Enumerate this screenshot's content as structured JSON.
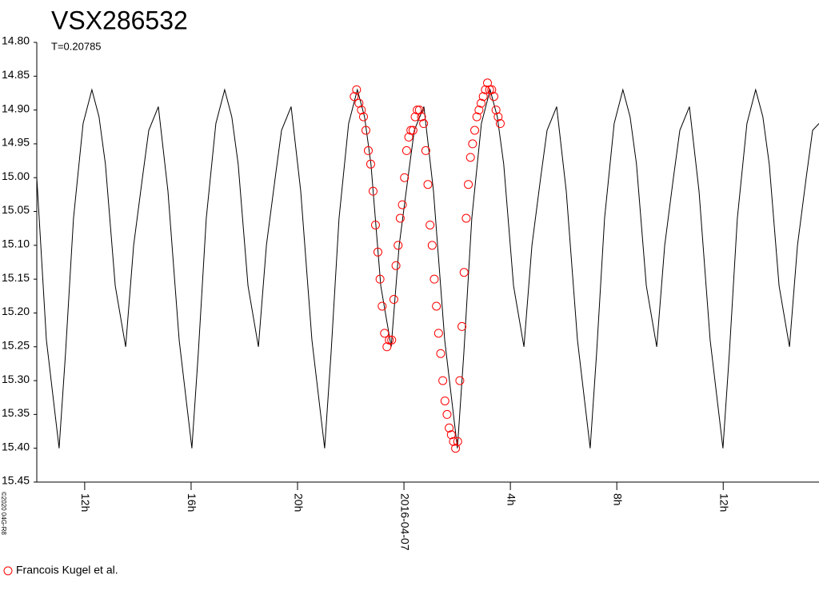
{
  "chart_data": {
    "type": "line",
    "title": "VSX286532",
    "subtitle": "T=0.20785",
    "credit": "©2020 04G-R8",
    "ylim": [
      14.8,
      15.45
    ],
    "y_inverted": true,
    "yticks": [
      {
        "value": 14.8,
        "label": "14.80"
      },
      14.85,
      {
        "value": 14.9,
        "label": "14.90"
      },
      14.95,
      {
        "value": 15.0,
        "label": "15.00"
      },
      15.05,
      {
        "value": 15.1,
        "label": "15.10"
      },
      15.15,
      {
        "value": 15.2,
        "label": "15.20"
      },
      15.25,
      {
        "value": 15.3,
        "label": "15.30"
      },
      15.35,
      {
        "value": 15.4,
        "label": "15.40"
      },
      {
        "value": 15.45,
        "label": "15.45"
      }
    ],
    "xlim": [
      10.2,
      39.6
    ],
    "xticks": [
      {
        "value": 12,
        "label": "12h"
      },
      {
        "value": 16,
        "label": "16h"
      },
      {
        "value": 20,
        "label": "20h"
      },
      {
        "value": 24,
        "label": "2016-04-07"
      },
      {
        "value": 28,
        "label": "4h"
      },
      {
        "value": 32,
        "label": "8h"
      },
      {
        "value": 36,
        "label": "12h"
      }
    ],
    "legend": "bottom-left",
    "series": [
      {
        "type": "line",
        "color": "#000000",
        "x": [
          10.2,
          10.56,
          11.04,
          11.28,
          11.58,
          11.94,
          12.27,
          12.54,
          12.78,
          13.15,
          13.54,
          13.84,
          14.17,
          14.41,
          14.77,
          15.13,
          15.55,
          16.03,
          16.27,
          16.57,
          16.93,
          17.26,
          17.53,
          17.77,
          18.14,
          18.53,
          18.83,
          19.16,
          19.4,
          19.76,
          20.12,
          20.54,
          21.02,
          21.26,
          21.56,
          21.92,
          22.25,
          22.52,
          22.76,
          23.13,
          23.52,
          23.82,
          24.15,
          24.39,
          24.75,
          25.11,
          25.53,
          26.01,
          26.25,
          26.55,
          26.91,
          27.24,
          27.51,
          27.75,
          28.12,
          28.51,
          28.81,
          29.14,
          29.38,
          29.74,
          30.1,
          30.52,
          31.0,
          31.24,
          31.54,
          31.9,
          32.23,
          32.5,
          32.74,
          33.11,
          33.5,
          33.8,
          34.13,
          34.37,
          34.73,
          35.09,
          35.51,
          35.99,
          36.23,
          36.53,
          36.89,
          37.22,
          37.49,
          37.73,
          38.1,
          38.49,
          38.79,
          39.12,
          39.36,
          39.6
        ],
        "values": [
          15.0,
          15.24,
          15.4,
          15.26,
          15.06,
          14.92,
          14.87,
          14.91,
          14.98,
          15.16,
          15.25,
          15.1,
          15.0,
          14.93,
          14.895,
          15.02,
          15.24,
          15.4,
          15.26,
          15.06,
          14.92,
          14.87,
          14.91,
          14.98,
          15.16,
          15.25,
          15.1,
          15.0,
          14.93,
          14.895,
          15.02,
          15.24,
          15.4,
          15.26,
          15.06,
          14.92,
          14.87,
          14.91,
          14.98,
          15.16,
          15.25,
          15.1,
          15.0,
          14.93,
          14.895,
          15.02,
          15.24,
          15.4,
          15.26,
          15.06,
          14.92,
          14.87,
          14.91,
          14.98,
          15.16,
          15.25,
          15.1,
          15.0,
          14.93,
          14.895,
          15.02,
          15.24,
          15.4,
          15.26,
          15.06,
          14.92,
          14.87,
          14.91,
          14.98,
          15.16,
          15.25,
          15.1,
          15.0,
          14.93,
          14.895,
          15.02,
          15.24,
          15.4,
          15.26,
          15.06,
          14.92,
          14.87,
          14.91,
          14.98,
          15.16,
          15.25,
          15.1,
          15.0,
          14.93,
          14.92
        ]
      },
      {
        "type": "scatter",
        "name": "Francois Kugel et al.",
        "color": "#ff0000",
        "marker": "open-circle",
        "x": [
          22.13,
          22.22,
          22.31,
          22.4,
          22.48,
          22.57,
          22.66,
          22.75,
          22.84,
          22.93,
          23.02,
          23.1,
          23.18,
          23.27,
          23.36,
          23.45,
          23.54,
          23.62,
          23.7,
          23.78,
          23.86,
          23.94,
          24.02,
          24.1,
          24.18,
          24.26,
          24.34,
          24.42,
          24.5,
          24.58,
          24.66,
          24.74,
          24.82,
          24.9,
          24.98,
          25.06,
          25.14,
          25.22,
          25.3,
          25.38,
          25.46,
          25.54,
          25.62,
          25.7,
          25.78,
          25.86,
          25.94,
          26.02,
          26.1,
          26.18,
          26.26,
          26.34,
          26.42,
          26.5,
          26.58,
          26.66,
          26.74,
          26.82,
          26.9,
          26.98,
          27.06,
          27.14,
          27.22,
          27.3,
          27.38,
          27.46,
          27.54,
          27.62
        ],
        "values": [
          14.88,
          14.87,
          14.89,
          14.9,
          14.91,
          14.93,
          14.96,
          14.98,
          15.02,
          15.07,
          15.11,
          15.15,
          15.19,
          15.23,
          15.25,
          15.24,
          15.24,
          15.18,
          15.13,
          15.1,
          15.06,
          15.04,
          15.0,
          14.96,
          14.94,
          14.93,
          14.93,
          14.91,
          14.9,
          14.9,
          14.91,
          14.92,
          14.96,
          15.01,
          15.07,
          15.1,
          15.15,
          15.19,
          15.23,
          15.26,
          15.3,
          15.33,
          15.35,
          15.37,
          15.38,
          15.39,
          15.4,
          15.39,
          15.3,
          15.22,
          15.14,
          15.06,
          15.01,
          14.97,
          14.95,
          14.93,
          14.91,
          14.9,
          14.89,
          14.88,
          14.87,
          14.86,
          14.87,
          14.87,
          14.88,
          14.9,
          14.91,
          14.92
        ]
      }
    ]
  }
}
